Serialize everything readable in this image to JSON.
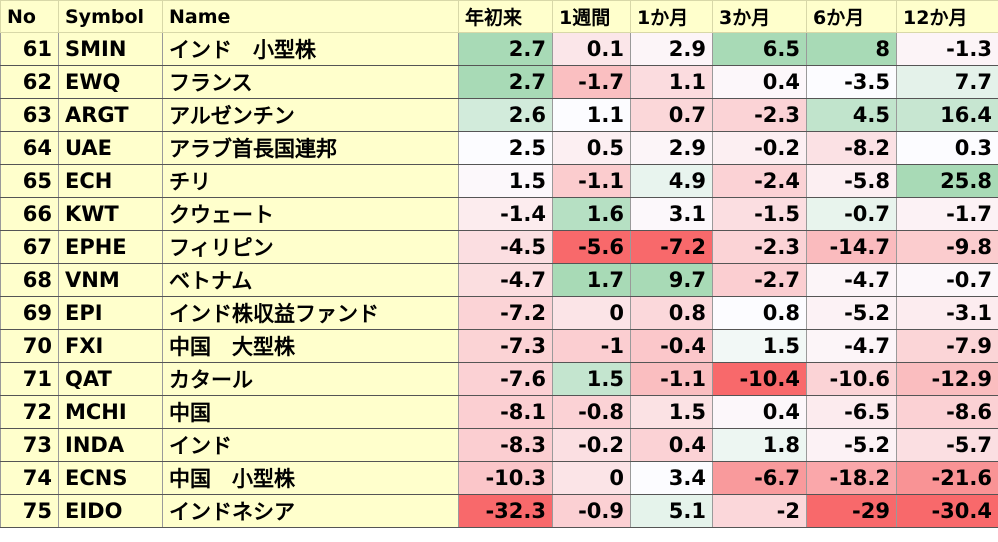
{
  "table": {
    "columns": [
      "No",
      "Symbol",
      "Name",
      "年初来",
      "1週間",
      "1か月",
      "3か月",
      "6か月",
      "12か月"
    ],
    "rows": [
      [
        61,
        "SMIN",
        "インド　小型株",
        2.7,
        0.1,
        2.9,
        6.5,
        8,
        -1.3
      ],
      [
        62,
        "EWQ",
        "フランス",
        2.7,
        -1.7,
        1.1,
        0.4,
        -3.5,
        7.7
      ],
      [
        63,
        "ARGT",
        "アルゼンチン",
        2.6,
        1.1,
        0.7,
        -2.3,
        4.5,
        16.4
      ],
      [
        64,
        "UAE",
        "アラブ首長国連邦",
        2.5,
        0.5,
        2.9,
        -0.2,
        -8.2,
        0.3
      ],
      [
        65,
        "ECH",
        "チリ",
        1.5,
        -1.1,
        4.9,
        -2.4,
        -5.8,
        25.8
      ],
      [
        66,
        "KWT",
        "クウェート",
        -1.4,
        1.6,
        3.1,
        -1.5,
        -0.7,
        -1.7
      ],
      [
        67,
        "EPHE",
        "フィリピン",
        -4.5,
        -5.6,
        -7.2,
        -2.3,
        -14.7,
        -9.8
      ],
      [
        68,
        "VNM",
        "ベトナム",
        -4.7,
        1.7,
        9.7,
        -2.7,
        -4.7,
        -0.7
      ],
      [
        69,
        "EPI",
        "インド株収益ファンド",
        -7.2,
        0,
        0.8,
        0.8,
        -5.2,
        -3.1
      ],
      [
        70,
        "FXI",
        "中国　大型株",
        -7.3,
        -1,
        -0.4,
        1.5,
        -4.7,
        -7.9
      ],
      [
        71,
        "QAT",
        "カタール",
        -7.6,
        1.5,
        -1.1,
        -10.4,
        -10.6,
        -12.9
      ],
      [
        72,
        "MCHI",
        "中国",
        -8.1,
        -0.8,
        1.5,
        0.4,
        -6.5,
        -8.6
      ],
      [
        73,
        "INDA",
        "インド",
        -8.3,
        -0.2,
        0.4,
        1.8,
        -5.2,
        -5.7
      ],
      [
        74,
        "ECNS",
        "中国　小型株",
        -10.3,
        0,
        3.4,
        -6.7,
        -18.2,
        -21.6
      ],
      [
        75,
        "EIDO",
        "インドネシア",
        -32.3,
        -0.9,
        5.1,
        -2,
        -29,
        -30.4
      ]
    ],
    "color_scale": {
      "low": "#f8696b",
      "mid": "#fcfcff",
      "high": "#63be7b"
    }
  }
}
